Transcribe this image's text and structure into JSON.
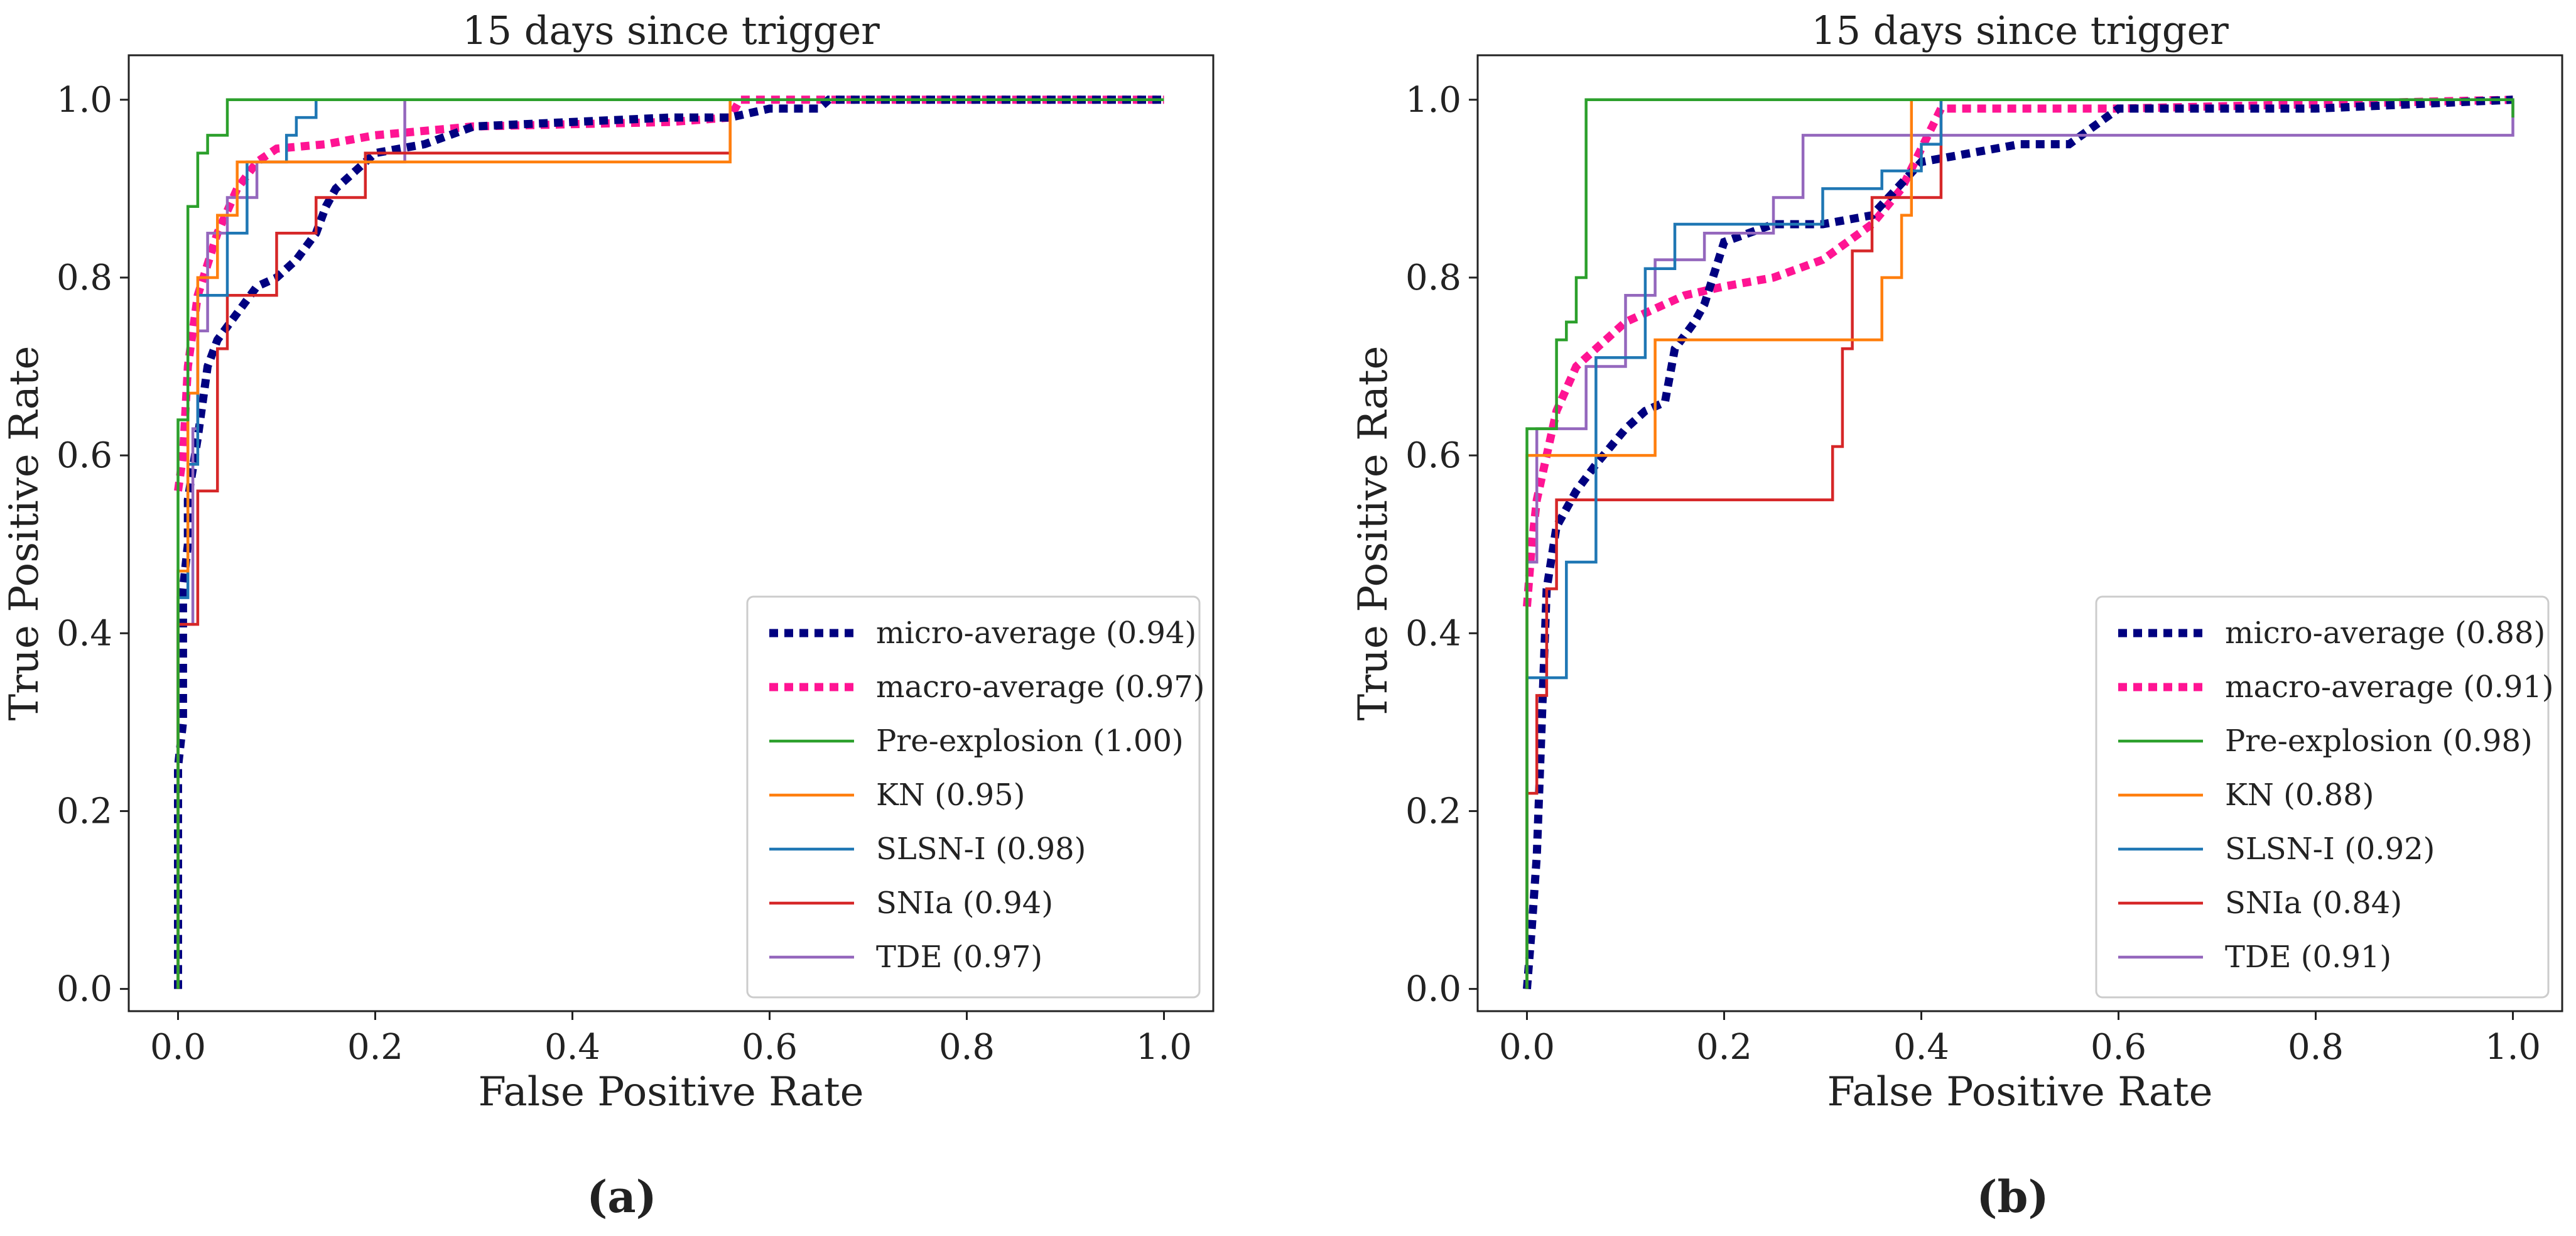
{
  "chart_data": [
    {
      "type": "line",
      "panel_label": "(a)",
      "title": "15 days since trigger",
      "xlabel": "False Positive Rate",
      "ylabel": "True Positive Rate",
      "xlim": [
        -0.05,
        1.05
      ],
      "ylim": [
        -0.025,
        1.05
      ],
      "xticks": [
        "0.0",
        "0.2",
        "0.4",
        "0.6",
        "0.8",
        "1.0"
      ],
      "yticks": [
        "0.0",
        "0.2",
        "0.4",
        "0.6",
        "0.8",
        "1.0"
      ],
      "legend_position": "lower-right",
      "series": [
        {
          "name": "micro-average (0.94)",
          "color": "#000080",
          "style": "dotted",
          "x": [
            0,
            0,
            0.005,
            0.005,
            0.01,
            0.01,
            0.02,
            0.03,
            0.04,
            0.06,
            0.08,
            0.1,
            0.12,
            0.14,
            0.15,
            0.16,
            0.18,
            0.2,
            0.25,
            0.3,
            0.4,
            0.5,
            0.56,
            0.6,
            0.65,
            0.66,
            1.0
          ],
          "y": [
            0,
            0.25,
            0.3,
            0.45,
            0.5,
            0.55,
            0.62,
            0.7,
            0.73,
            0.76,
            0.79,
            0.8,
            0.82,
            0.85,
            0.88,
            0.9,
            0.92,
            0.94,
            0.95,
            0.97,
            0.975,
            0.98,
            0.98,
            0.99,
            0.99,
            1.0,
            1.0
          ]
        },
        {
          "name": "macro-average (0.97)",
          "color": "#ff1493",
          "style": "dotted",
          "x": [
            0,
            0.005,
            0.01,
            0.02,
            0.04,
            0.06,
            0.08,
            0.1,
            0.15,
            0.2,
            0.3,
            0.5,
            0.56,
            0.57,
            1.0
          ],
          "y": [
            0.56,
            0.6,
            0.7,
            0.78,
            0.85,
            0.9,
            0.93,
            0.945,
            0.95,
            0.96,
            0.97,
            0.975,
            0.98,
            1.0,
            1.0
          ]
        },
        {
          "name": "Pre-explosion (1.00)",
          "color": "#2ca02c",
          "style": "solid",
          "x": [
            0,
            0,
            0.01,
            0.01,
            0.02,
            0.02,
            0.03,
            0.03,
            0.05,
            0.05,
            0.1,
            0.1,
            1.0
          ],
          "y": [
            0,
            0.64,
            0.64,
            0.88,
            0.88,
            0.94,
            0.94,
            0.96,
            0.96,
            1.0,
            1.0,
            1.0,
            1.0
          ]
        },
        {
          "name": "KN (0.95)",
          "color": "#ff7f0e",
          "style": "solid",
          "x": [
            0,
            0,
            0.01,
            0.01,
            0.02,
            0.02,
            0.04,
            0.04,
            0.06,
            0.06,
            0.56,
            0.56,
            1.0
          ],
          "y": [
            0,
            0.47,
            0.47,
            0.67,
            0.67,
            0.8,
            0.8,
            0.87,
            0.87,
            0.93,
            0.93,
            1.0,
            1.0
          ]
        },
        {
          "name": "SLSN-I (0.98)",
          "color": "#1f77b4",
          "style": "solid",
          "x": [
            0,
            0,
            0.01,
            0.01,
            0.02,
            0.02,
            0.05,
            0.05,
            0.07,
            0.07,
            0.11,
            0.11,
            0.12,
            0.12,
            0.14,
            0.14,
            1.0
          ],
          "y": [
            0,
            0.44,
            0.44,
            0.59,
            0.59,
            0.78,
            0.78,
            0.85,
            0.85,
            0.93,
            0.93,
            0.96,
            0.96,
            0.98,
            0.98,
            1.0,
            1.0
          ]
        },
        {
          "name": "SNIa (0.94)",
          "color": "#d62728",
          "style": "solid",
          "x": [
            0,
            0,
            0.02,
            0.02,
            0.04,
            0.04,
            0.05,
            0.05,
            0.1,
            0.1,
            0.14,
            0.14,
            0.19,
            0.19,
            0.56,
            0.56,
            1.0
          ],
          "y": [
            0,
            0.41,
            0.41,
            0.56,
            0.56,
            0.72,
            0.72,
            0.78,
            0.78,
            0.85,
            0.85,
            0.89,
            0.89,
            0.94,
            0.94,
            1.0,
            1.0
          ]
        },
        {
          "name": "TDE (0.97)",
          "color": "#9467bd",
          "style": "solid",
          "x": [
            0,
            0,
            0.015,
            0.015,
            0.02,
            0.02,
            0.03,
            0.03,
            0.05,
            0.05,
            0.08,
            0.08,
            0.13,
            0.13,
            0.23,
            0.23,
            1.0
          ],
          "y": [
            0,
            0.41,
            0.41,
            0.63,
            0.63,
            0.74,
            0.74,
            0.85,
            0.85,
            0.89,
            0.89,
            0.93,
            0.93,
            0.93,
            0.93,
            1.0,
            1.0
          ]
        }
      ]
    },
    {
      "type": "line",
      "panel_label": "(b)",
      "title": "15 days since trigger",
      "xlabel": "False Positive Rate",
      "ylabel": "True Positive Rate",
      "xlim": [
        -0.05,
        1.05
      ],
      "ylim": [
        -0.025,
        1.05
      ],
      "xticks": [
        "0.0",
        "0.2",
        "0.4",
        "0.6",
        "0.8",
        "1.0"
      ],
      "yticks": [
        "0.0",
        "0.2",
        "0.4",
        "0.6",
        "0.8",
        "1.0"
      ],
      "legend_position": "lower-right",
      "series": [
        {
          "name": "micro-average (0.88)",
          "color": "#000080",
          "style": "dotted",
          "x": [
            0,
            0.005,
            0.01,
            0.015,
            0.02,
            0.03,
            0.05,
            0.07,
            0.1,
            0.12,
            0.14,
            0.15,
            0.17,
            0.18,
            0.2,
            0.25,
            0.3,
            0.35,
            0.4,
            0.5,
            0.55,
            0.6,
            0.7,
            0.8,
            1.0
          ],
          "y": [
            0,
            0.07,
            0.15,
            0.3,
            0.45,
            0.52,
            0.56,
            0.59,
            0.63,
            0.65,
            0.66,
            0.72,
            0.75,
            0.77,
            0.84,
            0.86,
            0.86,
            0.87,
            0.93,
            0.95,
            0.95,
            0.99,
            0.99,
            0.99,
            1.0
          ]
        },
        {
          "name": "macro-average (0.91)",
          "color": "#ff1493",
          "style": "dotted",
          "x": [
            0,
            0.005,
            0.01,
            0.02,
            0.03,
            0.05,
            0.07,
            0.1,
            0.14,
            0.16,
            0.2,
            0.25,
            0.3,
            0.35,
            0.38,
            0.42,
            0.5,
            0.6,
            1.0
          ],
          "y": [
            0.43,
            0.5,
            0.55,
            0.6,
            0.65,
            0.7,
            0.72,
            0.75,
            0.77,
            0.78,
            0.79,
            0.8,
            0.82,
            0.86,
            0.9,
            0.99,
            0.99,
            0.99,
            1.0
          ]
        },
        {
          "name": "Pre-explosion (0.98)",
          "color": "#2ca02c",
          "style": "solid",
          "x": [
            0,
            0,
            0.03,
            0.03,
            0.04,
            0.04,
            0.05,
            0.05,
            0.06,
            0.06,
            1.0,
            1.0
          ],
          "y": [
            0,
            0.63,
            0.63,
            0.73,
            0.73,
            0.75,
            0.75,
            0.8,
            0.8,
            1.0,
            1.0,
            0.98
          ]
        },
        {
          "name": "KN (0.88)",
          "color": "#ff7f0e",
          "style": "solid",
          "x": [
            0,
            0,
            0.02,
            0.02,
            0.13,
            0.13,
            0.36,
            0.36,
            0.38,
            0.38,
            0.39,
            0.39,
            1.0
          ],
          "y": [
            0,
            0.6,
            0.6,
            0.6,
            0.6,
            0.73,
            0.73,
            0.8,
            0.8,
            0.87,
            0.87,
            1.0,
            1.0
          ]
        },
        {
          "name": "SLSN-I (0.92)",
          "color": "#1f77b4",
          "style": "solid",
          "x": [
            0,
            0,
            0.04,
            0.04,
            0.07,
            0.07,
            0.12,
            0.12,
            0.15,
            0.15,
            0.3,
            0.3,
            0.36,
            0.36,
            0.4,
            0.4,
            0.42,
            0.42,
            1.0
          ],
          "y": [
            0,
            0.35,
            0.35,
            0.48,
            0.48,
            0.71,
            0.71,
            0.81,
            0.81,
            0.86,
            0.86,
            0.9,
            0.9,
            0.92,
            0.92,
            0.95,
            0.95,
            1.0,
            1.0
          ]
        },
        {
          "name": "SNIa (0.84)",
          "color": "#d62728",
          "style": "solid",
          "x": [
            0,
            0,
            0.01,
            0.01,
            0.02,
            0.02,
            0.03,
            0.03,
            0.31,
            0.31,
            0.32,
            0.32,
            0.33,
            0.33,
            0.35,
            0.35,
            0.37,
            0.37,
            0.42,
            0.42,
            1.0
          ],
          "y": [
            0,
            0.22,
            0.22,
            0.33,
            0.33,
            0.45,
            0.45,
            0.55,
            0.55,
            0.61,
            0.61,
            0.72,
            0.72,
            0.83,
            0.83,
            0.89,
            0.89,
            0.89,
            0.89,
            1.0,
            1.0
          ]
        },
        {
          "name": "TDE (0.91)",
          "color": "#9467bd",
          "style": "solid",
          "x": [
            0,
            0,
            0.01,
            0.01,
            0.06,
            0.06,
            0.1,
            0.1,
            0.13,
            0.13,
            0.18,
            0.18,
            0.25,
            0.25,
            0.28,
            0.28,
            0.43,
            0.43,
            1.0,
            1.0
          ],
          "y": [
            0,
            0.48,
            0.48,
            0.63,
            0.63,
            0.7,
            0.7,
            0.78,
            0.78,
            0.82,
            0.82,
            0.85,
            0.85,
            0.89,
            0.89,
            0.96,
            0.96,
            0.96,
            0.96,
            1.0
          ]
        }
      ]
    }
  ]
}
